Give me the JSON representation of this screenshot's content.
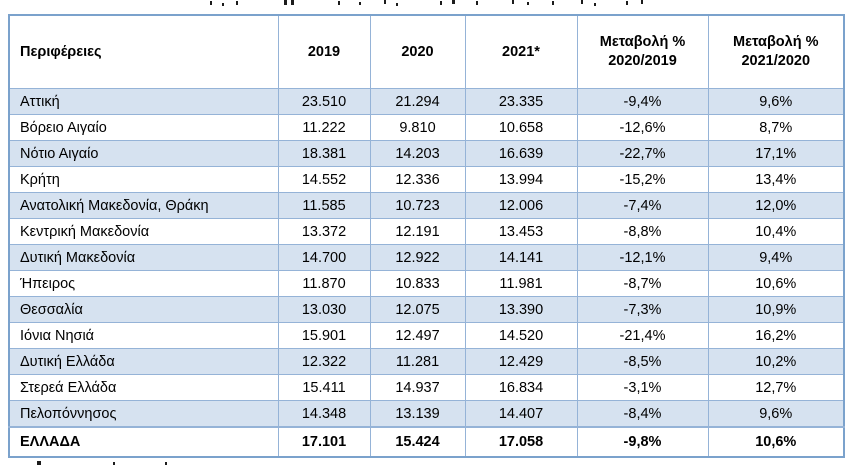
{
  "colors": {
    "row_band": "#d6e2f0",
    "grid_border": "#95b3d7",
    "outer_border": "#7ba2cc",
    "text": "#000000",
    "page_background": "#ffffff"
  },
  "chart_data": {
    "type": "table",
    "title": "",
    "columns": [
      "Περιφέρειες",
      "2019",
      "2020",
      "2021*",
      "Μεταβολή %\n2020/2019",
      "Μεταβολή %\n2021/2020"
    ],
    "rows": [
      [
        "Αττική",
        "23.510",
        "21.294",
        "23.335",
        "-9,4%",
        "9,6%"
      ],
      [
        "Βόρειο Αιγαίο",
        "11.222",
        "9.810",
        "10.658",
        "-12,6%",
        "8,7%"
      ],
      [
        "Νότιο Αιγαίο",
        "18.381",
        "14.203",
        "16.639",
        "-22,7%",
        "17,1%"
      ],
      [
        "Κρήτη",
        "14.552",
        "12.336",
        "13.994",
        "-15,2%",
        "13,4%"
      ],
      [
        "Ανατολική Μακεδονία, Θράκη",
        "11.585",
        "10.723",
        "12.006",
        "-7,4%",
        "12,0%"
      ],
      [
        "Κεντρική Μακεδονία",
        "13.372",
        "12.191",
        "13.453",
        "-8,8%",
        "10,4%"
      ],
      [
        "Δυτική Μακεδονία",
        "14.700",
        "12.922",
        "14.141",
        "-12,1%",
        "9,4%"
      ],
      [
        "Ήπειρος",
        "11.870",
        "10.833",
        "11.981",
        "-8,7%",
        "10,6%"
      ],
      [
        "Θεσσαλία",
        "13.030",
        "12.075",
        "13.390",
        "-7,3%",
        "10,9%"
      ],
      [
        "Ιόνια Νησιά",
        "15.901",
        "12.497",
        "14.520",
        "-21,4%",
        "16,2%"
      ],
      [
        "Δυτική Ελλάδα",
        "12.322",
        "11.281",
        "12.429",
        "-8,5%",
        "10,2%"
      ],
      [
        "Στερεά Ελλάδα",
        "15.411",
        "14.937",
        "16.834",
        "-3,1%",
        "12,7%"
      ],
      [
        "Πελοπόννησος",
        "14.348",
        "13.139",
        "14.407",
        "-8,4%",
        "9,6%"
      ]
    ],
    "total_row": [
      "ΕΛΛΑΔΑ",
      "17.101",
      "15.424",
      "17.058",
      "-9,8%",
      "10,6%"
    ],
    "layout": {
      "shaded_rows": "alternating starting with first data row",
      "total_row_bold": true,
      "header_bold": true
    }
  }
}
